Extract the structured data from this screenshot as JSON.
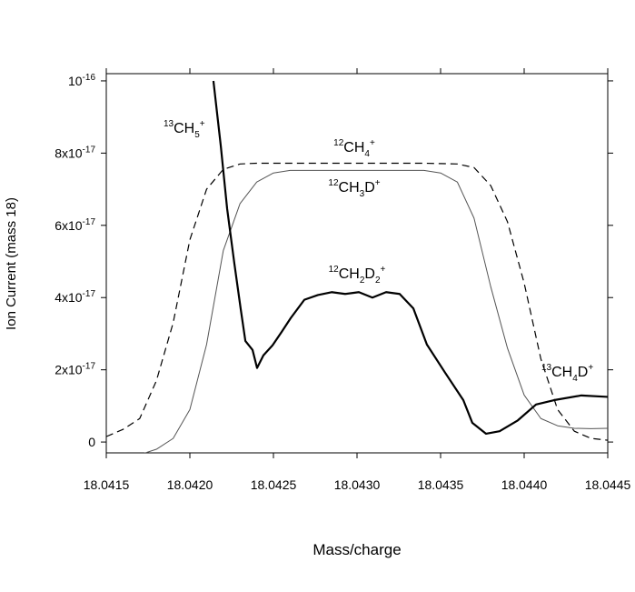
{
  "chart_data": {
    "type": "line",
    "x_label": "Mass/charge",
    "y_label": "Ion Current (mass 18)",
    "xlim": [
      18.0415,
      18.0445
    ],
    "ylim": [
      -3e-18,
      1.02e-16
    ],
    "xticks": [
      18.0415,
      {
        "value": 18.042,
        "label": "18.0420"
      },
      18.0425,
      {
        "value": 18.043,
        "label": "18.0430"
      },
      18.0435,
      {
        "value": 18.044,
        "label": "18.0440"
      },
      18.0445
    ],
    "yticks": [
      0,
      {
        "value": 2e-17,
        "label": "2x10",
        "exponent": "-17"
      },
      {
        "value": 4e-17,
        "label": "4x10",
        "exponent": "-17"
      },
      {
        "value": 6e-17,
        "label": "6x10",
        "exponent": "-17"
      },
      {
        "value": 8e-17,
        "label": "8x10",
        "exponent": "-17"
      },
      {
        "value": 1e-16,
        "label": "10",
        "exponent": "-16"
      }
    ],
    "series": [
      {
        "color": "#000000",
        "style": "dashed",
        "width": 1.2,
        "x": [
          18.0415,
          18.0416,
          18.0417,
          18.0418,
          18.0419,
          18.042,
          18.0421,
          18.0422,
          18.0423,
          18.0424,
          18.0425,
          18.0426,
          18.0427,
          18.0428,
          18.0429,
          18.043,
          18.0431,
          18.0432,
          18.0433,
          18.0434,
          18.0435,
          18.0436,
          18.0437,
          18.0438,
          18.0439,
          18.044,
          18.0441,
          18.0442,
          18.0443,
          18.0444,
          18.0445
        ],
        "values": [
          1.5e-18,
          3.5e-18,
          6.5e-18,
          1.7e-17,
          3.3e-17,
          5.6e-17,
          7e-17,
          7.55e-17,
          7.7e-17,
          7.72e-17,
          7.72e-17,
          7.72e-17,
          7.72e-17,
          7.72e-17,
          7.72e-17,
          7.72e-17,
          7.72e-17,
          7.72e-17,
          7.72e-17,
          7.72e-17,
          7.71e-17,
          7.7e-17,
          7.6e-17,
          7.1e-17,
          6.1e-17,
          4.4e-17,
          2.3e-17,
          9e-18,
          3e-18,
          1e-18,
          5e-19
        ]
      },
      {
        "color": "#555555",
        "style": "solid",
        "width": 1,
        "x": [
          18.0415,
          18.0416,
          18.0417,
          18.0418,
          18.0419,
          18.042,
          18.0421,
          18.0422,
          18.0423,
          18.0424,
          18.0425,
          18.0426,
          18.0427,
          18.0428,
          18.0429,
          18.043,
          18.0431,
          18.0432,
          18.0433,
          18.0434,
          18.0435,
          18.0436,
          18.0437,
          18.0438,
          18.0439,
          18.044,
          18.0441,
          18.0442,
          18.0443,
          18.0444,
          18.0445
        ],
        "values": [
          -3.5e-18,
          -3.8e-18,
          -3.5e-18,
          -2e-18,
          1e-18,
          9e-18,
          2.7e-17,
          5.3e-17,
          6.6e-17,
          7.2e-17,
          7.45e-17,
          7.52e-17,
          7.52e-17,
          7.52e-17,
          7.52e-17,
          7.52e-17,
          7.52e-17,
          7.52e-17,
          7.52e-17,
          7.52e-17,
          7.45e-17,
          7.2e-17,
          6.2e-17,
          4.3e-17,
          2.6e-17,
          1.3e-17,
          6.5e-18,
          4.5e-18,
          3.8e-18,
          3.7e-18,
          3.8e-18
        ]
      },
      {
        "color": "#000000",
        "style": "solid",
        "width": 2.2,
        "x": [
          18.042141,
          18.042185,
          18.042223,
          18.042266,
          18.042304,
          18.042332,
          18.042375,
          18.042402,
          18.04244,
          18.042495,
          18.042549,
          18.042603,
          18.042685,
          18.042766,
          18.042848,
          18.042929,
          18.043011,
          18.043092,
          18.043174,
          18.043255,
          18.043337,
          18.043418,
          18.043527,
          18.043636,
          18.04369,
          18.043772,
          18.043853,
          18.043962,
          18.044071,
          18.044179,
          18.044342,
          18.0445
        ],
        "values": [
          1e-16,
          8.2e-17,
          6.46e-17,
          4.95e-17,
          3.69e-17,
          2.8e-17,
          2.55e-17,
          2.05e-17,
          2.4e-17,
          2.68e-17,
          3.05e-17,
          3.43e-17,
          3.94e-17,
          4.07e-17,
          4.15e-17,
          4.1e-17,
          4.15e-17,
          4e-17,
          4.15e-17,
          4.1e-17,
          3.7e-17,
          2.7e-17,
          1.92e-17,
          1.16e-17,
          5.3e-18,
          2.3e-18,
          3e-18,
          6e-18,
          1.04e-17,
          1.16e-17,
          1.29e-17,
          1.25e-17
        ]
      }
    ],
    "annotations": [
      {
        "parts": [
          {
            "text": "13",
            "style": "sup"
          },
          {
            "text": "CH",
            "style": "normal"
          },
          {
            "text": "5",
            "style": "sub"
          },
          {
            "text": "+",
            "style": "sup"
          }
        ]
      },
      {
        "parts": [
          {
            "text": "12",
            "style": "sup"
          },
          {
            "text": "CH",
            "style": "normal"
          },
          {
            "text": "4",
            "style": "sub"
          },
          {
            "text": "+",
            "style": "sup"
          }
        ]
      },
      {
        "parts": [
          {
            "text": "12",
            "style": "sup"
          },
          {
            "text": "CH",
            "style": "normal"
          },
          {
            "text": "3",
            "style": "sub"
          },
          {
            "text": "D",
            "style": "normal"
          },
          {
            "text": "+",
            "style": "sup"
          }
        ]
      },
      {
        "parts": [
          {
            "text": "12",
            "style": "sup"
          },
          {
            "text": "CH",
            "style": "normal"
          },
          {
            "text": "2",
            "style": "sub"
          },
          {
            "text": "D",
            "style": "normal"
          },
          {
            "text": "2",
            "style": "sub"
          },
          {
            "text": "+",
            "style": "sup"
          }
        ]
      },
      {
        "parts": [
          {
            "text": "13",
            "style": "sup"
          },
          {
            "text": "CH",
            "style": "normal"
          },
          {
            "text": "4",
            "style": "sub"
          },
          {
            "text": "D",
            "style": "normal"
          },
          {
            "text": "+",
            "style": "sup"
          }
        ]
      }
    ]
  }
}
